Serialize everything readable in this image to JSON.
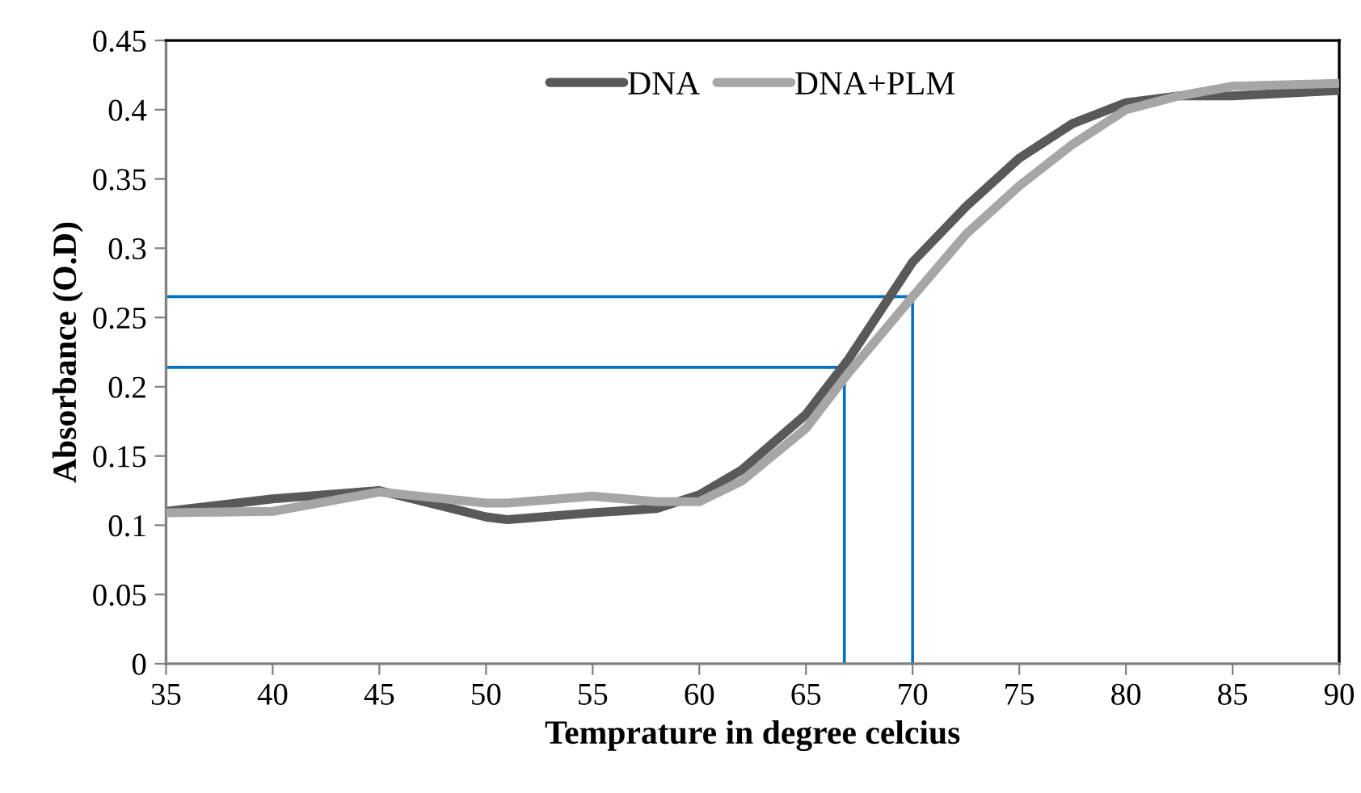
{
  "chart_data": {
    "type": "line",
    "xlabel": "Temprature in degree celcius",
    "ylabel": "Absorbance (O.D)",
    "x": [
      35,
      40,
      45,
      50,
      51,
      55,
      58,
      60,
      62,
      65,
      67,
      70,
      72.5,
      75,
      77.5,
      80,
      82.5,
      85,
      90
    ],
    "series": [
      {
        "name": "DNA",
        "color": "#595959",
        "values": [
          0.11,
          0.119,
          0.125,
          0.106,
          0.104,
          0.109,
          0.112,
          0.122,
          0.14,
          0.18,
          0.22,
          0.29,
          0.33,
          0.365,
          0.39,
          0.405,
          0.41,
          0.41,
          0.414
        ]
      },
      {
        "name": "DNA+PLM",
        "color": "#a6a6a6",
        "values": [
          0.109,
          0.11,
          0.124,
          0.116,
          0.116,
          0.121,
          0.117,
          0.117,
          0.132,
          0.17,
          0.21,
          0.265,
          0.31,
          0.345,
          0.375,
          0.4,
          0.41,
          0.417,
          0.419
        ]
      },
      {
        "color": "#0070c0",
        "x": [
          35,
          70,
          70
        ],
        "values": [
          0.265,
          0.265,
          0
        ]
      },
      {
        "color": "#0070c0",
        "x": [
          35,
          66.8,
          66.8
        ],
        "values": [
          0.214,
          0.214,
          0
        ]
      }
    ],
    "xlim": [
      35,
      90
    ],
    "xticks": [
      35,
      40,
      45,
      50,
      55,
      60,
      65,
      70,
      75,
      80,
      85,
      90
    ],
    "ylim": [
      0,
      0.45
    ],
    "yticks": [
      0,
      0.05,
      0.1,
      0.15,
      0.2,
      0.25,
      0.3,
      0.35,
      0.4,
      0.45
    ],
    "grid": false,
    "legend": "top",
    "marker": "none",
    "line_style": "solid"
  }
}
